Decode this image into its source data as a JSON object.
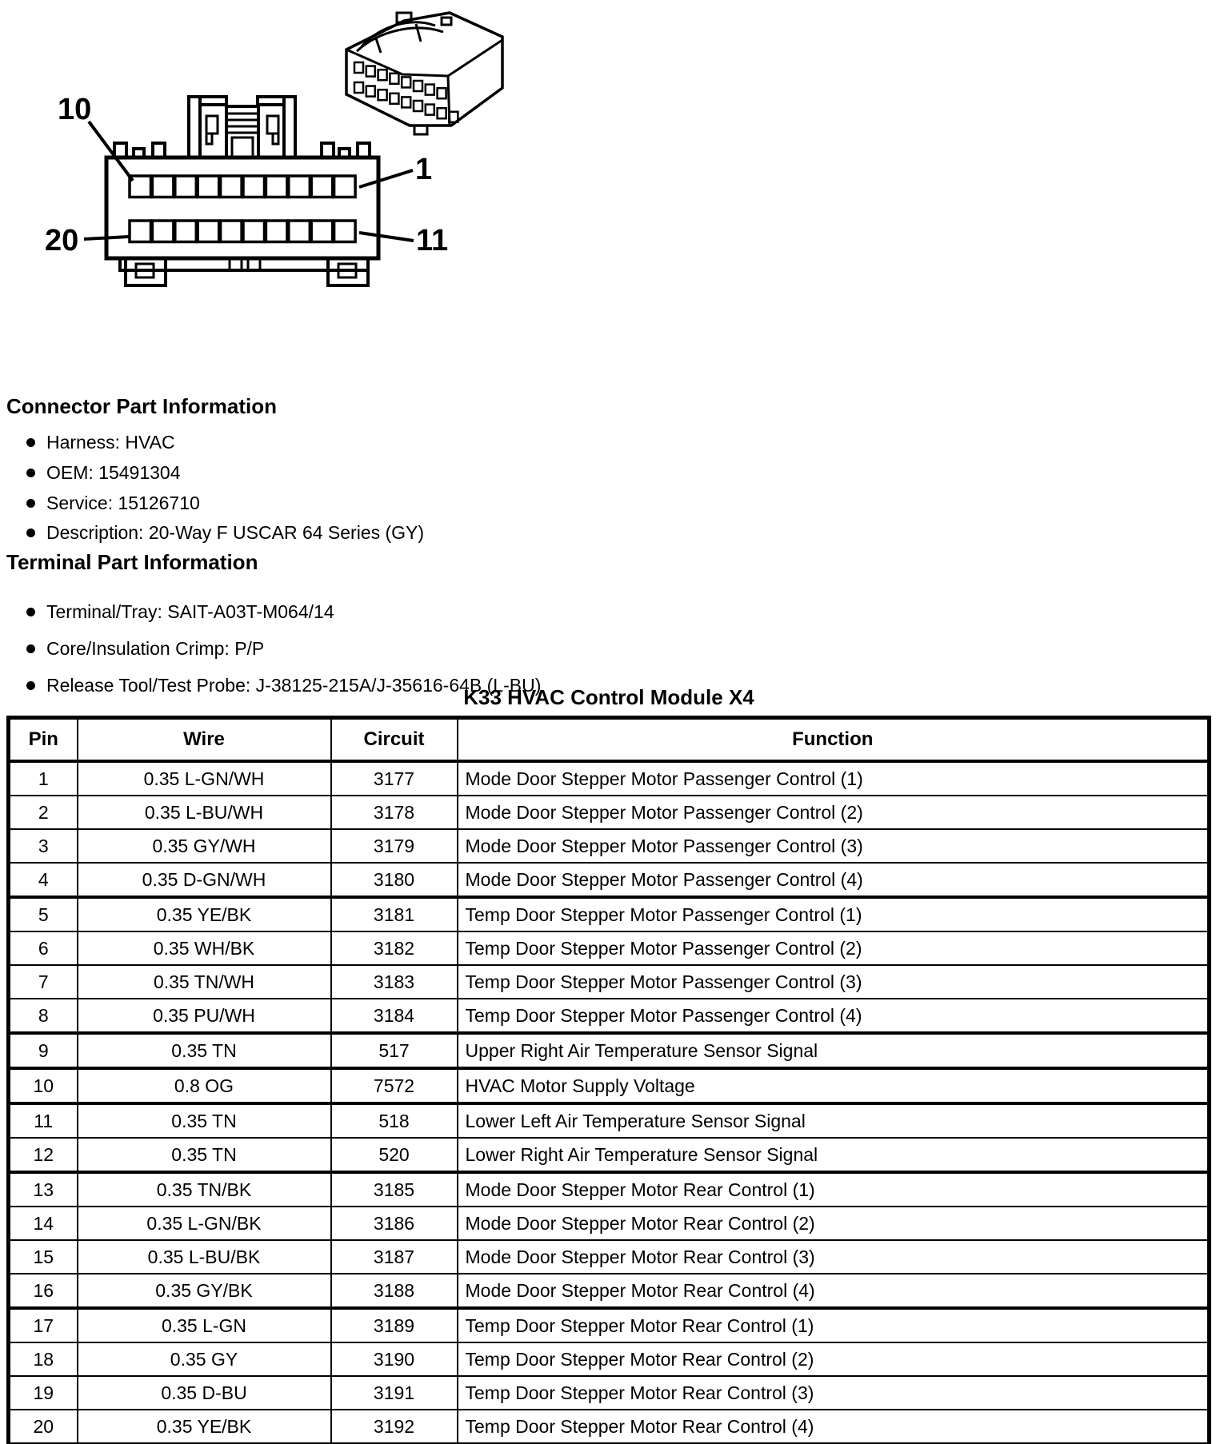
{
  "colors": {
    "ink": "#000000",
    "paper": "#ffffff"
  },
  "diagram": {
    "labels": {
      "top_left": "10",
      "top_right": "1",
      "bottom_left": "20",
      "bottom_right": "11"
    }
  },
  "sections": [
    {
      "heading": "Connector Part Information",
      "items": [
        "Harness: HVAC",
        "OEM: 15491304",
        "Service: 15126710",
        "Description: 20-Way F USCAR 64 Series (GY)"
      ]
    },
    {
      "heading": "Terminal Part Information",
      "items": [
        "Terminal/Tray: SAIT-A03T-M064/14",
        "Core/Insulation Crimp: P/P",
        "Release Tool/Test Probe: J-38125-215A/J-35616-64B (L-BU)"
      ]
    }
  ],
  "table": {
    "title": "K33 HVAC Control Module X4",
    "columns": [
      "Pin",
      "Wire",
      "Circuit",
      "Function"
    ],
    "thick_border_after_pins": [
      "4",
      "8",
      "9",
      "10",
      "12",
      "16"
    ],
    "rows": [
      {
        "pin": "1",
        "wire": "0.35 L-GN/WH",
        "circuit": "3177",
        "function": "Mode Door Stepper Motor Passenger Control (1)"
      },
      {
        "pin": "2",
        "wire": "0.35 L-BU/WH",
        "circuit": "3178",
        "function": "Mode Door Stepper Motor Passenger Control (2)"
      },
      {
        "pin": "3",
        "wire": "0.35 GY/WH",
        "circuit": "3179",
        "function": "Mode Door Stepper Motor Passenger Control (3)"
      },
      {
        "pin": "4",
        "wire": "0.35 D-GN/WH",
        "circuit": "3180",
        "function": "Mode Door Stepper Motor Passenger Control (4)"
      },
      {
        "pin": "5",
        "wire": "0.35 YE/BK",
        "circuit": "3181",
        "function": "Temp Door Stepper Motor Passenger Control (1)"
      },
      {
        "pin": "6",
        "wire": "0.35 WH/BK",
        "circuit": "3182",
        "function": "Temp Door Stepper Motor Passenger Control (2)"
      },
      {
        "pin": "7",
        "wire": "0.35 TN/WH",
        "circuit": "3183",
        "function": "Temp Door Stepper Motor Passenger Control (3)"
      },
      {
        "pin": "8",
        "wire": "0.35 PU/WH",
        "circuit": "3184",
        "function": "Temp Door Stepper Motor Passenger Control (4)"
      },
      {
        "pin": "9",
        "wire": "0.35 TN",
        "circuit": "517",
        "function": "Upper Right Air Temperature Sensor Signal"
      },
      {
        "pin": "10",
        "wire": "0.8 OG",
        "circuit": "7572",
        "function": "HVAC Motor Supply Voltage"
      },
      {
        "pin": "11",
        "wire": "0.35 TN",
        "circuit": "518",
        "function": "Lower Left Air Temperature Sensor Signal"
      },
      {
        "pin": "12",
        "wire": "0.35 TN",
        "circuit": "520",
        "function": "Lower Right Air Temperature Sensor Signal"
      },
      {
        "pin": "13",
        "wire": "0.35 TN/BK",
        "circuit": "3185",
        "function": "Mode Door Stepper Motor Rear Control (1)"
      },
      {
        "pin": "14",
        "wire": "0.35 L-GN/BK",
        "circuit": "3186",
        "function": "Mode Door Stepper Motor Rear Control (2)"
      },
      {
        "pin": "15",
        "wire": "0.35 L-BU/BK",
        "circuit": "3187",
        "function": "Mode Door Stepper Motor Rear Control (3)"
      },
      {
        "pin": "16",
        "wire": "0.35 GY/BK",
        "circuit": "3188",
        "function": "Mode Door Stepper Motor Rear Control (4)"
      },
      {
        "pin": "17",
        "wire": "0.35 L-GN",
        "circuit": "3189",
        "function": "Temp Door Stepper Motor Rear Control (1)"
      },
      {
        "pin": "18",
        "wire": "0.35 GY",
        "circuit": "3190",
        "function": "Temp Door Stepper Motor Rear Control (2)"
      },
      {
        "pin": "19",
        "wire": "0.35 D-BU",
        "circuit": "3191",
        "function": "Temp Door Stepper Motor Rear Control (3)"
      },
      {
        "pin": "20",
        "wire": "0.35 YE/BK",
        "circuit": "3192",
        "function": "Temp Door Stepper Motor Rear Control (4)"
      }
    ]
  }
}
